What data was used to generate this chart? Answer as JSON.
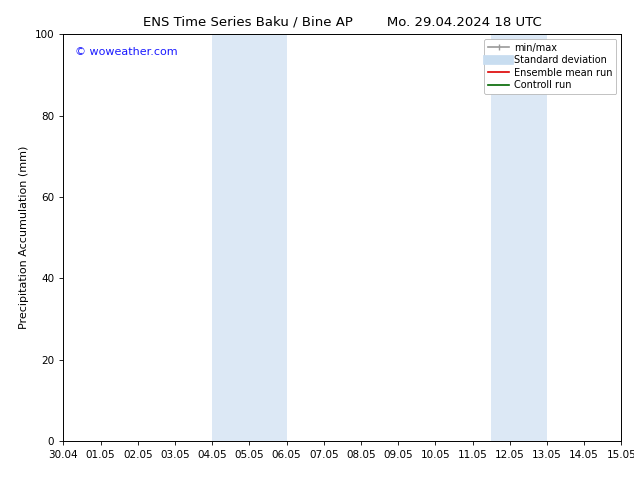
{
  "title_left": "ENS Time Series Baku / Bine AP",
  "title_right": "Mo. 29.04.2024 18 UTC",
  "ylabel": "Precipitation Accumulation (mm)",
  "xlabel_ticks": [
    "30.04",
    "01.05",
    "02.05",
    "03.05",
    "04.05",
    "05.05",
    "06.05",
    "07.05",
    "08.05",
    "09.05",
    "10.05",
    "11.05",
    "12.05",
    "13.05",
    "14.05",
    "15.05"
  ],
  "xlim": [
    0,
    15
  ],
  "ylim": [
    0,
    100
  ],
  "yticks": [
    0,
    20,
    40,
    60,
    80,
    100
  ],
  "shaded_bands": [
    {
      "x_start": 4.0,
      "x_end": 6.0,
      "color": "#dce8f5"
    },
    {
      "x_start": 11.5,
      "x_end": 13.0,
      "color": "#dce8f5"
    }
  ],
  "watermark_text": "© woweather.com",
  "watermark_color": "#1a1aff",
  "legend_entries": [
    {
      "label": "min/max",
      "color": "#999999",
      "lw": 1.2,
      "style": "caps"
    },
    {
      "label": "Standard deviation",
      "color": "#c8ddf0",
      "lw": 7,
      "style": "solid"
    },
    {
      "label": "Ensemble mean run",
      "color": "#dd0000",
      "lw": 1.2,
      "style": "solid"
    },
    {
      "label": "Controll run",
      "color": "#006600",
      "lw": 1.2,
      "style": "solid"
    }
  ],
  "bg_color": "#ffffff",
  "title_fontsize": 9.5,
  "tick_fontsize": 7.5,
  "ylabel_fontsize": 8,
  "watermark_fontsize": 8
}
